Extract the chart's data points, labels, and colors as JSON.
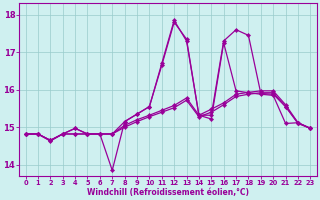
{
  "xlabel": "Windchill (Refroidissement éolien,°C)",
  "background_color": "#cff0f0",
  "line_color": "#990099",
  "grid_color": "#99cccc",
  "xlim": [
    -0.5,
    23.5
  ],
  "ylim": [
    13.7,
    18.3
  ],
  "yticks": [
    14,
    15,
    16,
    17,
    18
  ],
  "xticks": [
    0,
    1,
    2,
    3,
    4,
    5,
    6,
    7,
    8,
    9,
    10,
    11,
    12,
    13,
    14,
    15,
    16,
    17,
    18,
    19,
    20,
    21,
    22,
    23
  ],
  "series": [
    {
      "y": [
        14.82,
        14.82,
        14.63,
        14.82,
        14.97,
        14.82,
        14.82,
        13.85,
        15.15,
        15.35,
        15.55,
        16.65,
        17.8,
        17.35,
        15.32,
        15.22,
        17.25,
        15.97,
        15.92,
        15.88,
        15.85,
        15.1,
        15.12,
        14.97
      ]
    },
    {
      "y": [
        14.82,
        14.82,
        14.65,
        14.82,
        14.82,
        14.82,
        14.82,
        14.82,
        15.0,
        15.15,
        15.28,
        15.4,
        15.52,
        15.72,
        15.28,
        15.4,
        15.6,
        15.82,
        15.88,
        15.92,
        15.92,
        15.55,
        15.1,
        14.97
      ]
    },
    {
      "y": [
        14.82,
        14.82,
        14.65,
        14.82,
        14.82,
        14.82,
        14.82,
        14.82,
        15.05,
        15.2,
        15.32,
        15.45,
        15.58,
        15.78,
        15.32,
        15.48,
        15.65,
        15.88,
        15.93,
        15.97,
        15.97,
        15.6,
        15.12,
        14.97
      ]
    },
    {
      "y": [
        14.82,
        14.82,
        14.65,
        14.82,
        14.97,
        14.82,
        14.82,
        14.82,
        15.15,
        15.35,
        15.55,
        16.7,
        17.85,
        17.3,
        15.32,
        15.32,
        17.3,
        17.6,
        17.45,
        15.9,
        15.88,
        15.55,
        15.12,
        14.97
      ]
    }
  ]
}
